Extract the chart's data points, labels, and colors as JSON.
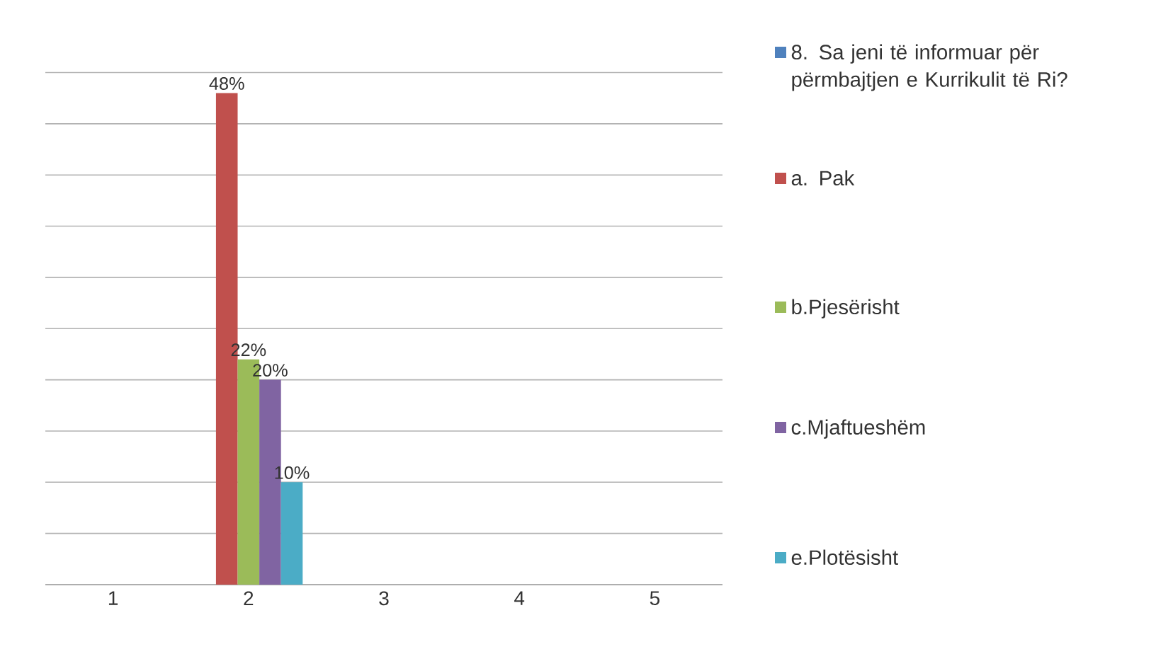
{
  "chart_data": {
    "type": "bar",
    "categories": [
      "1",
      "2",
      "3",
      "4",
      "5"
    ],
    "series": [
      {
        "name": "8. Sa jeni të informuar për përmbajtjen e Kurrikulit të Ri?",
        "color": "#4f81bd",
        "values": [
          null,
          null,
          null,
          null,
          null
        ]
      },
      {
        "name": "a. Pak",
        "color": "#c0504d",
        "values": [
          null,
          48,
          null,
          null,
          null
        ],
        "value_labels": [
          null,
          "48%",
          null,
          null,
          null
        ]
      },
      {
        "name": "b.Pjesërisht",
        "color": "#9bbb59",
        "values": [
          null,
          22,
          null,
          null,
          null
        ],
        "value_labels": [
          null,
          "22%",
          null,
          null,
          null
        ]
      },
      {
        "name": "c.Mjaftueshëm",
        "color": "#8064a2",
        "values": [
          null,
          20,
          null,
          null,
          null
        ],
        "value_labels": [
          null,
          "20%",
          null,
          null,
          null
        ]
      },
      {
        "name": "e.Plotësisht",
        "color": "#4bacc6",
        "values": [
          null,
          10,
          null,
          null,
          null
        ],
        "value_labels": [
          null,
          "10%",
          null,
          null,
          null
        ]
      }
    ],
    "grid": "y",
    "legend": "right",
    "tick_labels": "x"
  }
}
